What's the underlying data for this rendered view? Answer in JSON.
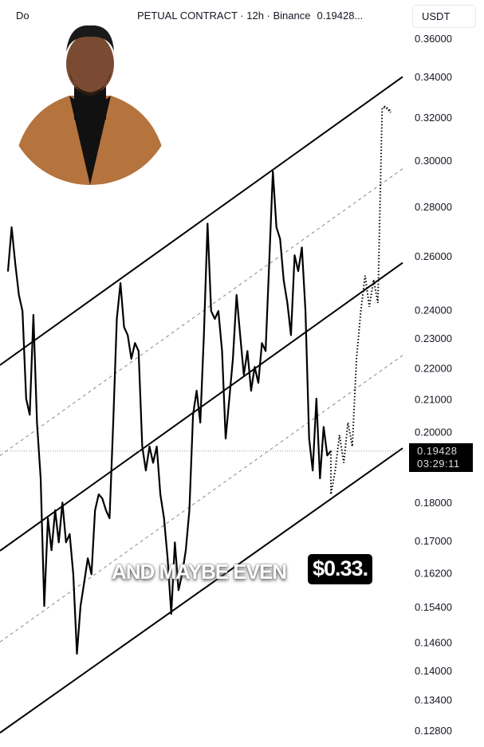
{
  "header": {
    "symbol_fragment": "Do",
    "title_fragment": "PETUAL CONTRACT · 12h · Binance",
    "price": "0.19428...",
    "currency_button": "USDT"
  },
  "last_price": {
    "value": "0.19428",
    "countdown": "03:29:11"
  },
  "caption": {
    "text": "AND MAYBE EVEN",
    "highlight": "$0.33."
  },
  "avatar": {
    "icon": "person-photo",
    "jacket_color": "#b5733d"
  },
  "chart_data": {
    "type": "line",
    "scale": "log",
    "ylim": [
      0.128,
      0.36
    ],
    "grid": false,
    "y_ticks": [
      "0.36000",
      "0.34000",
      "0.32000",
      "0.30000",
      "0.28000",
      "0.26000",
      "0.24000",
      "0.23000",
      "0.22000",
      "0.21000",
      "0.20000",
      "0.18000",
      "0.17000",
      "0.16200",
      "0.15400",
      "0.14600",
      "0.14000",
      "0.13400",
      "0.12800"
    ],
    "series": [
      {
        "values": [
          0.2542,
          0.2714,
          0.2572,
          0.2453,
          0.2395,
          0.2101,
          0.2051,
          0.2381,
          0.2027,
          0.1865,
          0.1541,
          0.1757,
          0.1675,
          0.1778,
          0.1695,
          0.1799,
          0.1695,
          0.1716,
          0.1616,
          0.1435,
          0.1541,
          0.1597,
          0.1655,
          0.1616,
          0.1778,
          0.1821,
          0.181,
          0.1778,
          0.1757,
          0.2027,
          0.2367,
          0.2497,
          0.2338,
          0.231,
          0.223,
          0.2283,
          0.2256,
          0.1956,
          0.1887,
          0.1956,
          0.1909,
          0.1956,
          0.1821,
          0.1757,
          0.1655,
          0.1523,
          0.1695,
          0.1578,
          0.1616,
          0.1675,
          0.1778,
          0.2051,
          0.2126,
          0.2027,
          0.231,
          0.2729,
          0.2395,
          0.2367,
          0.2395,
          0.2256,
          0.1979,
          0.2101,
          0.223,
          0.2453,
          0.231,
          0.2177,
          0.2256,
          0.2126,
          0.2203,
          0.2151,
          0.2283,
          0.2256,
          0.2572,
          0.295,
          0.2714,
          0.2667,
          0.2507,
          0.2424,
          0.231,
          0.2603,
          0.2542,
          0.2634,
          0.2395,
          0.1979,
          0.1887,
          0.2101,
          0.1865,
          0.2014,
          0.193,
          0.19428
        ]
      }
    ],
    "projection": {
      "style": "dotted",
      "values": [
        0.1821,
        0.1887,
        0.199,
        0.1909,
        0.2027,
        0.1956,
        0.223,
        0.2395,
        0.2525,
        0.241,
        0.251,
        0.2424,
        0.3246,
        0.3246,
        0.323
      ]
    },
    "channel_lines": [
      {
        "style": "solid",
        "start": 0.2228,
        "end": 0.3384
      },
      {
        "style": "dashed",
        "start": 0.1946,
        "end": 0.295
      },
      {
        "style": "solid",
        "start": 0.1688,
        "end": 0.2563
      },
      {
        "style": "dashed",
        "start": 0.1473,
        "end": 0.2232
      },
      {
        "style": "solid",
        "start": 0.1286,
        "end": 0.19428
      }
    ],
    "last_price_line": 0.19428
  }
}
